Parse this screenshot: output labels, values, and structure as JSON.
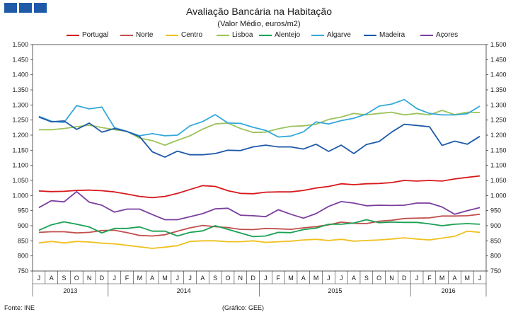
{
  "header": {
    "title": "Avaliação Bancária na Habitação",
    "subtitle": "(Valor Médio, euros/m2)"
  },
  "footer": {
    "source": "Fonte: INE",
    "credit": "(Gráfico: GEE)"
  },
  "chart_data": {
    "type": "line",
    "title": "Avaliação Bancária na Habitação",
    "subtitle": "(Valor Médio, euros/m2)",
    "ylabel": "euros/m2",
    "ylim": [
      750,
      1500
    ],
    "y_ticks": [
      "750",
      "800",
      "850",
      "900",
      "950",
      "1.000",
      "1.050",
      "1.100",
      "1.150",
      "1.200",
      "1.250",
      "1.300",
      "1.350",
      "1.400",
      "1.450",
      "1.500"
    ],
    "grid": false,
    "legend_position": "top",
    "categories": [
      "J",
      "A",
      "S",
      "O",
      "N",
      "D",
      "J",
      "F",
      "M",
      "A",
      "M",
      "J",
      "J",
      "A",
      "S",
      "O",
      "N",
      "D",
      "J",
      "F",
      "M",
      "A",
      "M",
      "J",
      "J",
      "A",
      "S",
      "O",
      "N",
      "D",
      "J",
      "F",
      "M",
      "A",
      "M",
      "J"
    ],
    "year_labels": [
      {
        "label": "2013",
        "start": 0,
        "end": 5
      },
      {
        "label": "2014",
        "start": 6,
        "end": 17
      },
      {
        "label": "2015",
        "start": 18,
        "end": 29
      },
      {
        "label": "2016",
        "start": 30,
        "end": 35
      }
    ],
    "series": [
      {
        "name": "Portugal",
        "color": "#d7191c",
        "values": [
          1015,
          1013,
          1014,
          1017,
          1018,
          1016,
          1012,
          1005,
          997,
          993,
          997,
          1007,
          1020,
          1033,
          1030,
          1016,
          1007,
          1006,
          1011,
          1012,
          1012,
          1017,
          1025,
          1030,
          1039,
          1036,
          1039,
          1040,
          1043,
          1050,
          1048,
          1050,
          1048,
          1055,
          1060,
          1065
        ]
      },
      {
        "name": "Norte",
        "color": "#c0504d",
        "values": [
          878,
          880,
          880,
          876,
          878,
          884,
          885,
          877,
          868,
          866,
          870,
          882,
          893,
          901,
          897,
          894,
          888,
          887,
          891,
          890,
          888,
          893,
          897,
          903,
          912,
          908,
          907,
          915,
          918,
          924,
          925,
          926,
          932,
          932,
          933,
          938
        ]
      },
      {
        "name": "Centro",
        "color": "#f0c020",
        "values": [
          843,
          848,
          843,
          848,
          846,
          842,
          840,
          835,
          830,
          825,
          829,
          834,
          848,
          850,
          850,
          847,
          847,
          850,
          845,
          847,
          849,
          853,
          855,
          851,
          855,
          849,
          851,
          853,
          856,
          860,
          856,
          853,
          859,
          865,
          882,
          878
        ]
      },
      {
        "name": "Lisboa",
        "color": "#9bc35a",
        "values": [
          1218,
          1218,
          1222,
          1228,
          1233,
          1225,
          1218,
          1213,
          1190,
          1182,
          1167,
          1183,
          1198,
          1220,
          1237,
          1240,
          1222,
          1209,
          1210,
          1221,
          1229,
          1231,
          1236,
          1252,
          1260,
          1272,
          1267,
          1272,
          1276,
          1267,
          1272,
          1267,
          1282,
          1268,
          1276,
          1275
        ]
      },
      {
        "name": "Alentejo",
        "color": "#1aa154",
        "values": [
          885,
          903,
          913,
          905,
          896,
          876,
          891,
          891,
          896,
          882,
          882,
          866,
          878,
          883,
          900,
          888,
          876,
          864,
          866,
          878,
          877,
          887,
          892,
          905,
          905,
          909,
          920,
          910,
          912,
          911,
          911,
          906,
          900,
          905,
          907,
          905
        ]
      },
      {
        "name": "Algarve",
        "color": "#33a8dc",
        "values": [
          1262,
          1246,
          1242,
          1298,
          1287,
          1293,
          1225,
          1212,
          1198,
          1205,
          1198,
          1200,
          1231,
          1245,
          1268,
          1240,
          1239,
          1226,
          1216,
          1194,
          1197,
          1211,
          1244,
          1237,
          1248,
          1256,
          1270,
          1296,
          1303,
          1318,
          1288,
          1272,
          1267,
          1267,
          1271,
          1296
        ]
      },
      {
        "name": "Madeira",
        "color": "#1f5aa8",
        "values": [
          1260,
          1244,
          1247,
          1219,
          1240,
          1210,
          1222,
          1212,
          1195,
          1145,
          1127,
          1147,
          1135,
          1135,
          1139,
          1150,
          1149,
          1161,
          1167,
          1161,
          1161,
          1154,
          1170,
          1146,
          1167,
          1139,
          1169,
          1179,
          1210,
          1236,
          1232,
          1228,
          1166,
          1180,
          1170,
          1196
        ]
      },
      {
        "name": "Açores",
        "color": "#7b3f9e",
        "values": [
          960,
          983,
          979,
          1013,
          978,
          968,
          945,
          955,
          955,
          937,
          920,
          920,
          930,
          940,
          956,
          958,
          935,
          933,
          930,
          953,
          938,
          925,
          940,
          964,
          980,
          975,
          966,
          968,
          967,
          968,
          975,
          975,
          962,
          938,
          950,
          960
        ]
      }
    ]
  }
}
